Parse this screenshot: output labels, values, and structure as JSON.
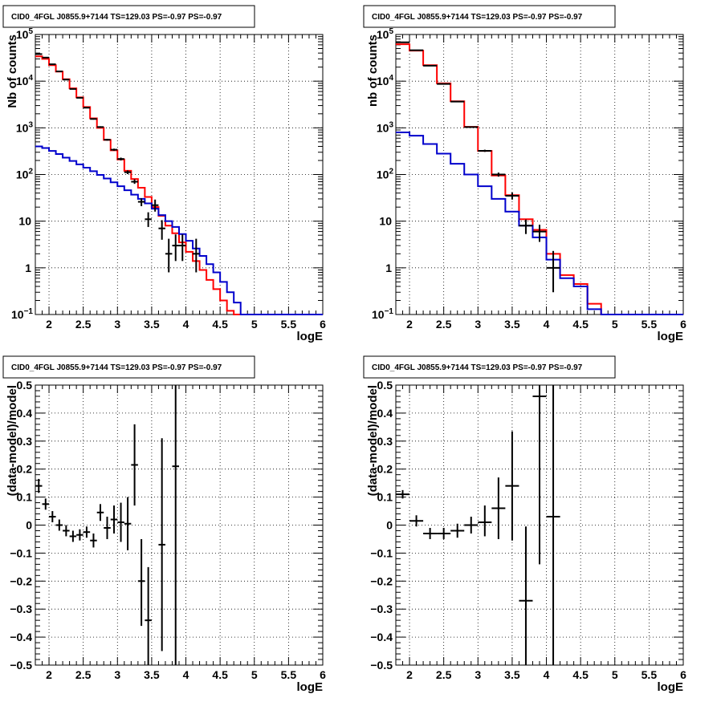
{
  "colors": {
    "data": "#000000",
    "total_model": "#ff0000",
    "source_model": "#0000cc"
  },
  "chart_data": [
    {
      "type": "line",
      "panel": "top-left",
      "title": "CID0_4FGL J0855.9+7144 TS=129.03 PS=-0.97 PS=-0.97",
      "xlabel": "logE",
      "ylabel": "Nb of counts",
      "xlim": [
        1.8,
        6.0
      ],
      "ylim": [
        0.1,
        100000
      ],
      "yscale": "log",
      "grid": true,
      "x_ticks": [
        "2",
        "2.5",
        "3",
        "3.5",
        "4",
        "4.5",
        "5",
        "5.5",
        "6"
      ],
      "y_ticks": [
        "10^-1",
        "1",
        "10",
        "10^2",
        "10^3",
        "10^4",
        "10^5"
      ],
      "series": [
        {
          "kind": "step",
          "color_key": "total_model",
          "edges": [
            1.8,
            1.9,
            2.0,
            2.1,
            2.2,
            2.3,
            2.4,
            2.5,
            2.6,
            2.7,
            2.8,
            2.9,
            3.0,
            3.1,
            3.2,
            3.3,
            3.4,
            3.5,
            3.6,
            3.7,
            3.8,
            3.9,
            4.0,
            4.1,
            4.2,
            4.3,
            4.4,
            4.5,
            4.6,
            4.7,
            4.8,
            6.0
          ],
          "values": [
            34000,
            30000,
            22000,
            16000,
            11000,
            7000,
            4500,
            2800,
            1600,
            1000,
            550,
            330,
            210,
            120,
            80,
            52,
            33,
            20,
            13,
            8,
            5.5,
            3.5,
            2.2,
            1.4,
            0.9,
            0.55,
            0.35,
            0.2,
            0.12,
            0.1,
            0.1
          ]
        },
        {
          "kind": "step",
          "color_key": "source_model",
          "edges": [
            1.8,
            1.9,
            2.0,
            2.1,
            2.2,
            2.3,
            2.4,
            2.5,
            2.6,
            2.7,
            2.8,
            2.9,
            3.0,
            3.1,
            3.2,
            3.3,
            3.4,
            3.5,
            3.6,
            3.7,
            3.8,
            3.9,
            4.0,
            4.1,
            4.2,
            4.3,
            4.4,
            4.5,
            4.6,
            4.7,
            4.8,
            6.0
          ],
          "values": [
            400,
            370,
            320,
            275,
            230,
            195,
            165,
            140,
            118,
            98,
            82,
            68,
            56,
            46,
            37,
            30,
            24,
            18.5,
            13.5,
            10,
            7.5,
            5.3,
            3.8,
            2.6,
            1.8,
            1.2,
            0.8,
            0.5,
            0.3,
            0.18,
            0.1
          ]
        },
        {
          "kind": "errorbar",
          "color_key": "data",
          "x": [
            1.85,
            1.95,
            2.05,
            2.15,
            2.25,
            2.35,
            2.45,
            2.55,
            2.65,
            2.75,
            2.85,
            2.95,
            3.05,
            3.15,
            3.25,
            3.35,
            3.45,
            3.55,
            3.65,
            3.75,
            3.85,
            3.95,
            4.15
          ],
          "y": [
            38000,
            32000,
            23000,
            16200,
            10800,
            6800,
            4400,
            2700,
            1550,
            1040,
            555,
            340,
            215,
            112,
            70,
            26,
            11,
            22,
            7,
            2,
            3,
            3,
            2
          ],
          "xerr": 0.05,
          "ylo": [
            37500,
            31500,
            22700,
            15900,
            10600,
            6650,
            4290,
            2630,
            1500,
            1000,
            530,
            322,
            200,
            102,
            63,
            21,
            7.5,
            16,
            4,
            0.8,
            1.4,
            1.4,
            0.8
          ],
          "yhi": [
            38500,
            32500,
            23300,
            16500,
            11000,
            6950,
            4510,
            2770,
            1600,
            1080,
            580,
            358,
            230,
            122,
            79,
            31,
            15.5,
            29,
            10.5,
            4.2,
            5.2,
            5.2,
            4.2
          ]
        }
      ]
    },
    {
      "type": "line",
      "panel": "top-right",
      "title": "CID0_4FGL J0855.9+7144 TS=129.03 PS=-0.97 PS=-0.97",
      "xlabel": "logE",
      "ylabel": "nb of counts",
      "xlim": [
        1.8,
        6.0
      ],
      "ylim": [
        0.1,
        100000
      ],
      "yscale": "log",
      "grid": true,
      "x_ticks": [
        "2",
        "2.5",
        "3",
        "3.5",
        "4",
        "4.5",
        "5",
        "5.5",
        "6"
      ],
      "y_ticks": [
        "10^-1",
        "1",
        "10",
        "10^2",
        "10^3",
        "10^4",
        "10^5"
      ],
      "series": [
        {
          "kind": "step",
          "color_key": "total_model",
          "edges": [
            1.8,
            2.0,
            2.2,
            2.4,
            2.6,
            2.8,
            3.0,
            3.2,
            3.4,
            3.6,
            3.8,
            4.0,
            4.2,
            4.4,
            4.6,
            4.8,
            6.0
          ],
          "values": [
            62000,
            45000,
            22000,
            9000,
            3700,
            1050,
            320,
            95,
            36,
            11,
            6.5,
            2.0,
            0.7,
            0.45,
            0.17,
            0.1
          ]
        },
        {
          "kind": "step",
          "color_key": "source_model",
          "edges": [
            1.8,
            2.0,
            2.2,
            2.4,
            2.6,
            2.8,
            3.0,
            3.2,
            3.4,
            3.6,
            3.8,
            4.0,
            4.2,
            4.4,
            4.6,
            4.8,
            6.0
          ],
          "values": [
            800,
            680,
            450,
            280,
            170,
            100,
            56,
            30,
            16,
            8,
            4.5,
            1.5,
            0.6,
            0.4,
            0.13,
            0.1
          ]
        },
        {
          "kind": "errorbar",
          "color_key": "data",
          "x": [
            1.9,
            2.1,
            2.3,
            2.5,
            2.7,
            2.9,
            3.1,
            3.3,
            3.5,
            3.7,
            3.9,
            4.1
          ],
          "y": [
            68000,
            46000,
            21500,
            8700,
            3650,
            1040,
            322,
            100,
            35,
            8,
            6,
            1
          ],
          "xerr": 0.1,
          "ylo": [
            67700,
            45800,
            21350,
            8600,
            3590,
            1010,
            305,
            90,
            29,
            5.3,
            3.6,
            0.3
          ],
          "yhi": [
            68300,
            46200,
            21650,
            8800,
            3710,
            1070,
            340,
            110,
            41,
            10.8,
            8.4,
            2.3
          ]
        }
      ]
    },
    {
      "type": "scatter",
      "panel": "bottom-left",
      "title": "CID0_4FGL J0855.9+7144 TS=129.03 PS=-0.97 PS=-0.97",
      "xlabel": "logE",
      "ylabel": "(data-model)/model",
      "xlim": [
        1.8,
        6.0
      ],
      "ylim": [
        -0.5,
        0.5
      ],
      "grid": true,
      "x_ticks": [
        "2",
        "2.5",
        "3",
        "3.5",
        "4",
        "4.5",
        "5",
        "5.5",
        "6"
      ],
      "y_ticks": [
        "-0.5",
        "-0.4",
        "-0.3",
        "-0.2",
        "-0.1",
        "0",
        "0.1",
        "0.2",
        "0.3",
        "0.4",
        "0.5"
      ],
      "series": [
        {
          "kind": "errorbar",
          "color_key": "data",
          "x": [
            1.85,
            1.95,
            2.05,
            2.15,
            2.25,
            2.35,
            2.45,
            2.55,
            2.65,
            2.75,
            2.85,
            2.95,
            3.05,
            3.15,
            3.25,
            3.35,
            3.45,
            3.65,
            3.85
          ],
          "y": [
            0.14,
            0.075,
            0.03,
            0.0,
            -0.02,
            -0.04,
            -0.035,
            -0.025,
            -0.055,
            0.045,
            -0.01,
            0.02,
            0.01,
            0.005,
            0.215,
            -0.2,
            -0.34,
            -0.07,
            0.21
          ],
          "xerr": 0.05,
          "ylo": [
            0.115,
            0.055,
            0.01,
            -0.02,
            -0.04,
            -0.06,
            -0.055,
            -0.045,
            -0.08,
            0.015,
            -0.05,
            -0.03,
            -0.06,
            -0.09,
            0.07,
            -0.36,
            -0.5,
            -0.45,
            -0.5
          ],
          "yhi": [
            0.165,
            0.095,
            0.05,
            0.02,
            0.0,
            -0.02,
            -0.015,
            -0.005,
            -0.03,
            0.075,
            0.03,
            0.07,
            0.08,
            0.1,
            0.36,
            -0.05,
            -0.15,
            0.31,
            0.5
          ]
        }
      ]
    },
    {
      "type": "scatter",
      "panel": "bottom-right",
      "title": "CID0_4FGL J0855.9+7144 TS=129.03 PS=-0.97 PS=-0.97",
      "xlabel": "logE",
      "ylabel": "(data-model)/model",
      "xlim": [
        1.8,
        6.0
      ],
      "ylim": [
        -0.5,
        0.5
      ],
      "grid": true,
      "x_ticks": [
        "2",
        "2.5",
        "3",
        "3.5",
        "4",
        "4.5",
        "5",
        "5.5",
        "6"
      ],
      "y_ticks": [
        "-0.5",
        "-0.4",
        "-0.3",
        "-0.2",
        "-0.1",
        "0",
        "0.1",
        "0.2",
        "0.3",
        "0.4",
        "0.5"
      ],
      "series": [
        {
          "kind": "errorbar",
          "color_key": "data",
          "x": [
            1.9,
            2.1,
            2.3,
            2.5,
            2.7,
            2.9,
            3.1,
            3.3,
            3.5,
            3.7,
            3.9,
            4.1
          ],
          "y": [
            0.11,
            0.015,
            -0.03,
            -0.03,
            -0.02,
            0.0,
            0.01,
            0.06,
            0.14,
            -0.27,
            0.46,
            0.03
          ],
          "xerr": 0.1,
          "ylo": [
            0.095,
            -0.005,
            -0.05,
            -0.05,
            -0.045,
            -0.03,
            -0.04,
            -0.05,
            -0.055,
            -0.5,
            -0.14,
            -0.5
          ],
          "yhi": [
            0.125,
            0.035,
            -0.01,
            -0.01,
            0.005,
            0.03,
            0.07,
            0.17,
            0.335,
            -0.005,
            0.5,
            0.5
          ]
        }
      ]
    }
  ]
}
